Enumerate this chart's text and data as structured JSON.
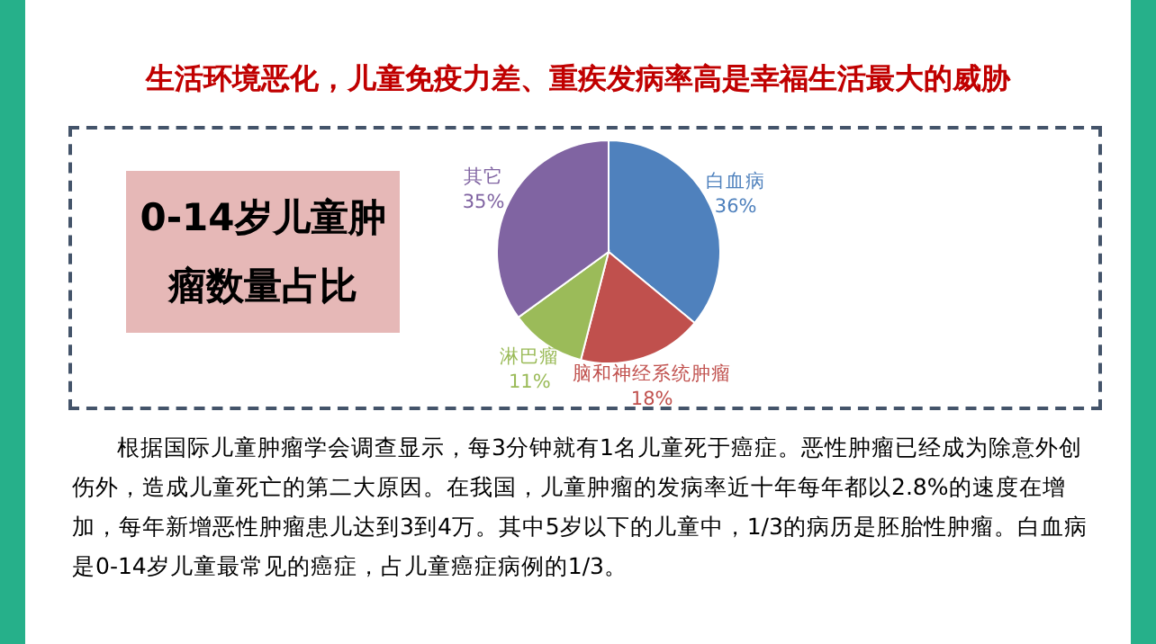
{
  "chart_data": {
    "type": "pie",
    "title": "0-14岁儿童肿瘤数量占比",
    "subtitle": "生活环境恶化，儿童免疫力差、重疾发病率高是幸福生活最大的威胁",
    "categories": [
      "白血病",
      "脑和神经系统肿瘤",
      "淋巴瘤",
      "其它"
    ],
    "values": [
      36,
      18,
      11,
      35
    ],
    "colors": [
      "#4f81bd",
      "#c0504d",
      "#9bbb59",
      "#8064a2"
    ],
    "value_labels": [
      "36%",
      "18%",
      "11%",
      "35%"
    ],
    "annotations": [
      "根据国际儿童肿瘤学会调查显示，每3分钟就有1名儿童死于癌症。恶性肿瘤已经成为除意外创伤外，造成儿童死亡的第二大原因。在我国，儿童肿瘤的发病率近十年每年都以2.8%的速度在增加，每年新增恶性肿瘤患儿达到3到4万。其中5岁以下的儿童中，1/3的病历是胚胎性肿瘤。白血病是0-14岁儿童最常见的癌症，占儿童癌症病例的1/3。"
    ]
  }
}
